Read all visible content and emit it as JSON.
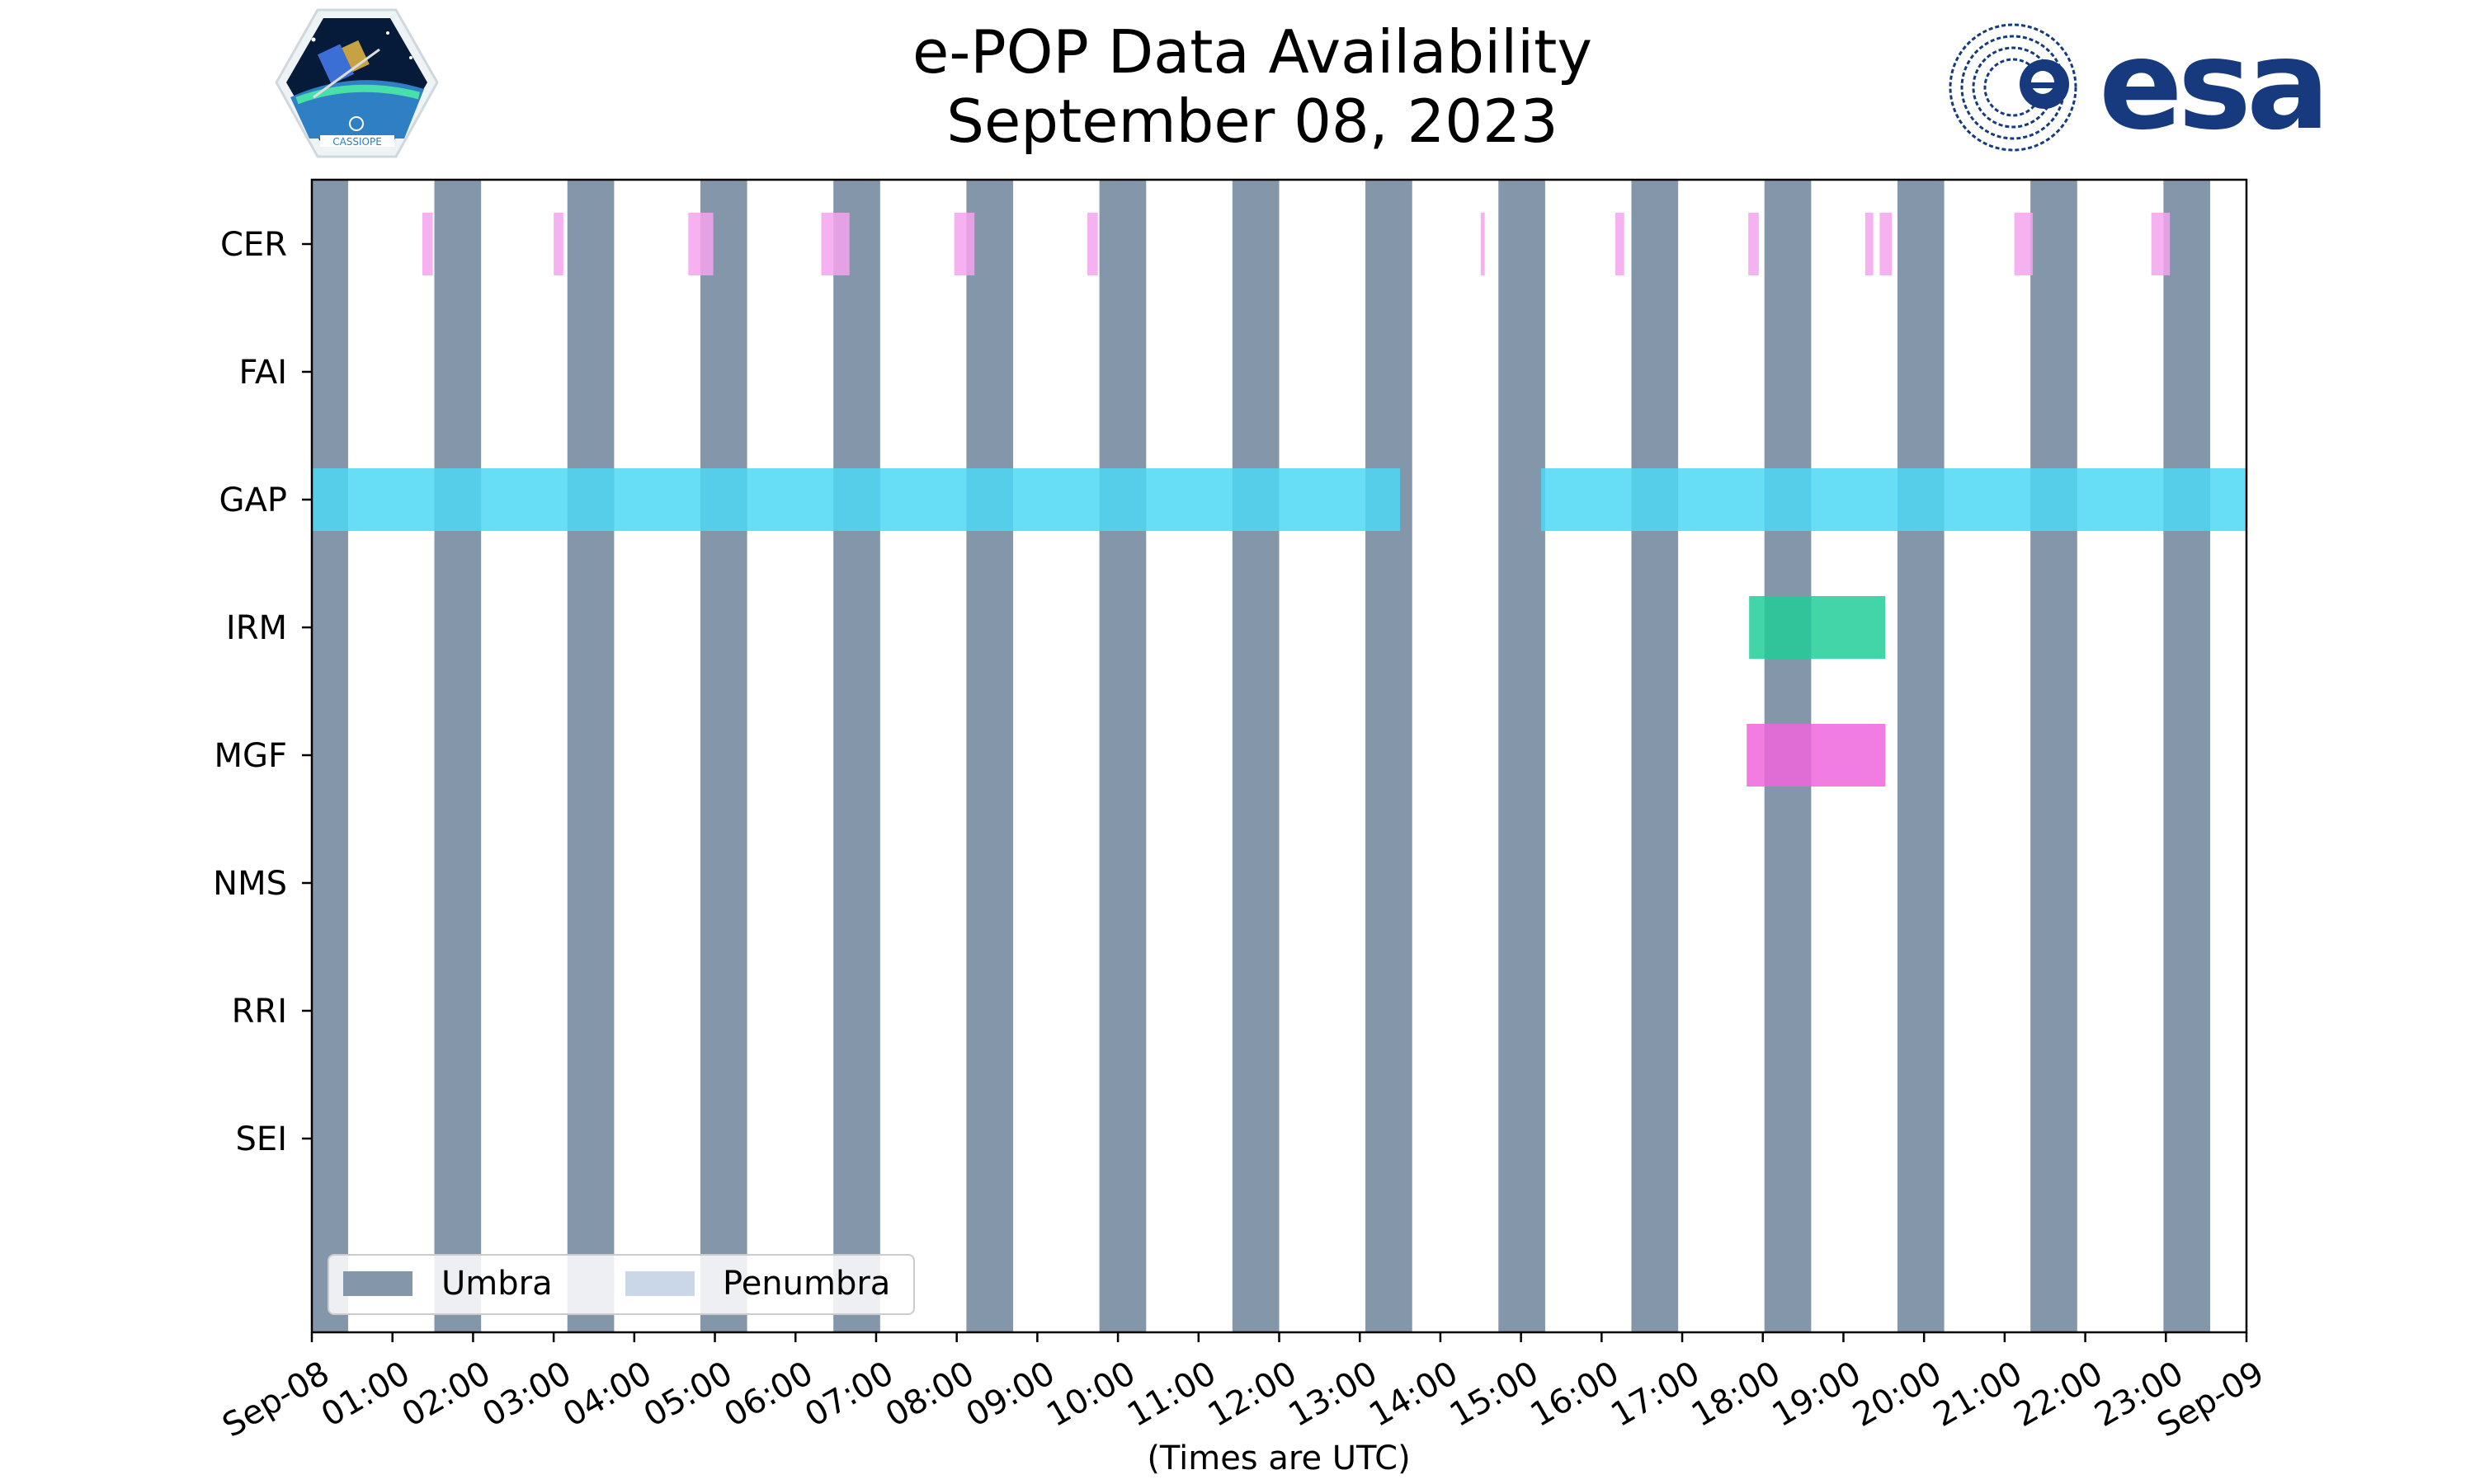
{
  "chart_data": {
    "type": "timeline",
    "title": [
      "e-POP Data Availability",
      "September 08, 2023"
    ],
    "xlabel": "(Times are UTC)",
    "xlim": [
      0,
      24
    ],
    "x_tick_labels": [
      "Sep-08",
      "01:00",
      "02:00",
      "03:00",
      "04:00",
      "05:00",
      "06:00",
      "07:00",
      "08:00",
      "09:00",
      "10:00",
      "11:00",
      "12:00",
      "13:00",
      "14:00",
      "15:00",
      "16:00",
      "17:00",
      "18:00",
      "19:00",
      "20:00",
      "21:00",
      "22:00",
      "23:00",
      "Sep-09"
    ],
    "instruments": [
      "CER",
      "FAI",
      "GAP",
      "IRM",
      "MGF",
      "NMS",
      "RRI",
      "SEI"
    ],
    "umbra_intervals_hours": [
      [
        0.0,
        0.45
      ],
      [
        1.52,
        2.1
      ],
      [
        3.17,
        3.75
      ],
      [
        4.82,
        5.4
      ],
      [
        6.47,
        7.05
      ],
      [
        8.12,
        8.7
      ],
      [
        9.77,
        10.35
      ],
      [
        11.42,
        12.0
      ],
      [
        13.07,
        13.65
      ],
      [
        14.72,
        15.3
      ],
      [
        16.37,
        16.95
      ],
      [
        18.02,
        18.6
      ],
      [
        19.67,
        20.25
      ],
      [
        21.32,
        21.9
      ],
      [
        22.97,
        23.55
      ]
    ],
    "availability": {
      "CER": [
        [
          1.37,
          1.5
        ],
        [
          3.0,
          3.12
        ],
        [
          4.67,
          4.98
        ],
        [
          6.32,
          6.67
        ],
        [
          7.97,
          8.22
        ],
        [
          9.62,
          9.75
        ],
        [
          14.5,
          14.55
        ],
        [
          16.17,
          16.28
        ],
        [
          17.82,
          17.95
        ],
        [
          19.27,
          19.37
        ],
        [
          19.45,
          19.6
        ],
        [
          21.12,
          21.35
        ],
        [
          22.82,
          23.05
        ]
      ],
      "FAI": [],
      "GAP": [
        [
          0.0,
          13.5
        ],
        [
          15.25,
          24.0
        ]
      ],
      "IRM": [
        [
          17.83,
          19.52
        ]
      ],
      "MGF": [
        [
          17.8,
          19.52
        ]
      ],
      "NMS": [],
      "RRI": [],
      "SEI": []
    },
    "legend": [
      {
        "label": "Umbra",
        "color": "#8496a9"
      },
      {
        "label": "Penumbra",
        "color": "#c9d7e8"
      }
    ],
    "colors": {
      "umbra": "#8496a9",
      "penumbra": "#c9d7e8",
      "CER": "#f5a3ef",
      "FAI": "#9e9e9e",
      "GAP": "#4dd8f5",
      "IRM": "#22cc99",
      "MGF": "#ee66dd",
      "NMS": "#ffa64d",
      "RRI": "#9966ff",
      "SEI": "#66aa55"
    },
    "legend_position": "lower-left"
  },
  "logos": {
    "left": {
      "caption": "CASSIOPE"
    },
    "right": {
      "text": "esa",
      "color": "#163a7d"
    }
  }
}
